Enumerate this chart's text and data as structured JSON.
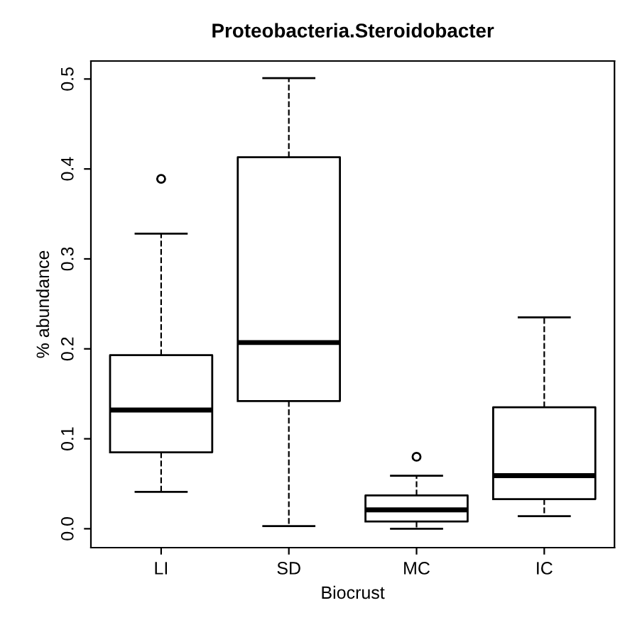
{
  "chart_data": {
    "type": "box",
    "title": "Proteobacteria.Steroidobacter",
    "xlabel": "Biocrust",
    "ylabel": "% abundance",
    "categories": [
      "LI",
      "SD",
      "MC",
      "IC"
    ],
    "boxes": [
      {
        "low": 0.041,
        "q1": 0.085,
        "median": 0.132,
        "q3": 0.193,
        "high": 0.328,
        "outliers": [
          0.389
        ]
      },
      {
        "low": 0.003,
        "q1": 0.142,
        "median": 0.207,
        "q3": 0.413,
        "high": 0.501
      },
      {
        "low": 0.0,
        "q1": 0.008,
        "median": 0.021,
        "q3": 0.037,
        "high": 0.059,
        "outliers": [
          0.08
        ]
      },
      {
        "low": 0.014,
        "q1": 0.033,
        "median": 0.059,
        "q3": 0.135,
        "high": 0.235
      }
    ],
    "color": "#000000",
    "ylim": [
      -0.021,
      0.52
    ],
    "yticks": [
      {
        "value": 0,
        "label": "0.0"
      },
      0.1,
      0.2,
      0.3,
      0.4,
      0.5
    ],
    "grid": false
  }
}
